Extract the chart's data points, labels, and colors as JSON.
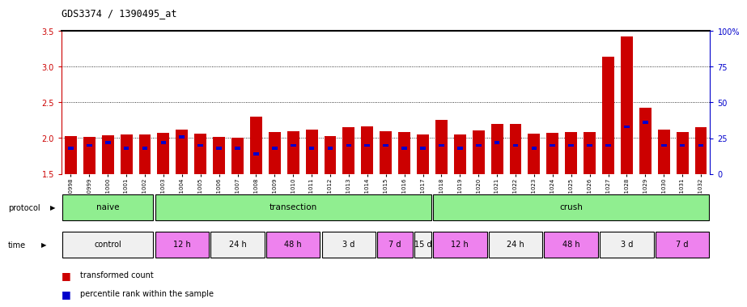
{
  "title": "GDS3374 / 1390495_at",
  "samples": [
    "GSM250998",
    "GSM250999",
    "GSM251000",
    "GSM251001",
    "GSM251002",
    "GSM251003",
    "GSM251004",
    "GSM251005",
    "GSM251006",
    "GSM251007",
    "GSM251008",
    "GSM251009",
    "GSM251010",
    "GSM251011",
    "GSM251012",
    "GSM251013",
    "GSM251014",
    "GSM251015",
    "GSM251016",
    "GSM251017",
    "GSM251018",
    "GSM251019",
    "GSM251020",
    "GSM251021",
    "GSM251022",
    "GSM251023",
    "GSM251024",
    "GSM251025",
    "GSM251026",
    "GSM251027",
    "GSM251028",
    "GSM251029",
    "GSM251030",
    "GSM251031",
    "GSM251032"
  ],
  "red_values": [
    2.03,
    2.02,
    2.04,
    2.05,
    2.05,
    2.07,
    2.12,
    2.06,
    2.02,
    2.01,
    2.3,
    2.08,
    2.1,
    2.12,
    2.03,
    2.15,
    2.16,
    2.1,
    2.08,
    2.05,
    2.25,
    2.05,
    2.11,
    2.2,
    2.2,
    2.06,
    2.07,
    2.08,
    2.08,
    3.14,
    3.42,
    2.42,
    2.12,
    2.09,
    2.15
  ],
  "blue_percentiles": [
    18,
    20,
    22,
    18,
    18,
    22,
    26,
    20,
    18,
    18,
    14,
    18,
    20,
    18,
    18,
    20,
    20,
    20,
    18,
    18,
    20,
    18,
    20,
    22,
    20,
    18,
    20,
    20,
    20,
    20,
    33,
    36,
    20,
    20,
    20
  ],
  "ylim_left": [
    1.5,
    3.5
  ],
  "ylim_right": [
    0,
    100
  ],
  "yticks_left": [
    1.5,
    2.0,
    2.5,
    3.0,
    3.5
  ],
  "yticks_right": [
    0,
    25,
    50,
    75,
    100
  ],
  "ytick_labels_right": [
    "0",
    "25",
    "50",
    "75",
    "100%"
  ],
  "protocol_groups": [
    {
      "label": "naive",
      "start": 0,
      "end": 4,
      "color": "#90EE90"
    },
    {
      "label": "transection",
      "start": 5,
      "end": 19,
      "color": "#90EE90"
    },
    {
      "label": "crush",
      "start": 20,
      "end": 34,
      "color": "#90EE90"
    }
  ],
  "time_groups": [
    {
      "label": "control",
      "start": 0,
      "end": 4,
      "color": "#f0f0f0"
    },
    {
      "label": "12 h",
      "start": 5,
      "end": 7,
      "color": "#EE82EE"
    },
    {
      "label": "24 h",
      "start": 8,
      "end": 10,
      "color": "#f0f0f0"
    },
    {
      "label": "48 h",
      "start": 11,
      "end": 13,
      "color": "#EE82EE"
    },
    {
      "label": "3 d",
      "start": 14,
      "end": 16,
      "color": "#f0f0f0"
    },
    {
      "label": "7 d",
      "start": 17,
      "end": 18,
      "color": "#EE82EE"
    },
    {
      "label": "15 d",
      "start": 19,
      "end": 19,
      "color": "#f0f0f0"
    },
    {
      "label": "12 h",
      "start": 20,
      "end": 22,
      "color": "#EE82EE"
    },
    {
      "label": "24 h",
      "start": 23,
      "end": 25,
      "color": "#f0f0f0"
    },
    {
      "label": "48 h",
      "start": 26,
      "end": 28,
      "color": "#EE82EE"
    },
    {
      "label": "3 d",
      "start": 29,
      "end": 31,
      "color": "#f0f0f0"
    },
    {
      "label": "7 d",
      "start": 32,
      "end": 34,
      "color": "#EE82EE"
    }
  ],
  "bar_color_red": "#CC0000",
  "bar_color_blue": "#0000CC",
  "bar_bottom": 1.5,
  "background_color": "#ffffff",
  "left_axis_color": "#CC0000",
  "right_axis_color": "#0000CC",
  "chart_bg": "#f8f8f8"
}
